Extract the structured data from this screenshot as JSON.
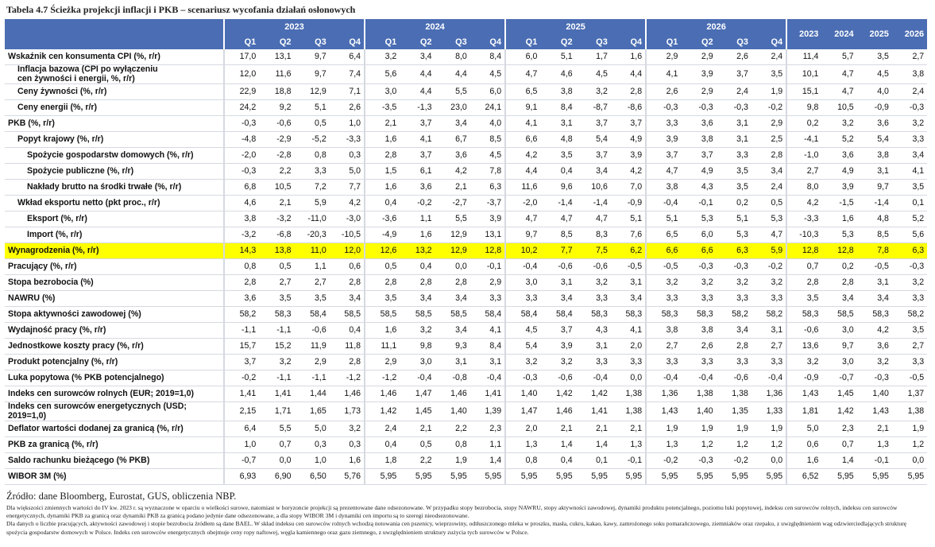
{
  "title": "Tabela 4.7 Ścieżka projekcji inflacji i PKB – scenariusz wycofania działań osłonowych",
  "table": {
    "group_headers": [
      "2023",
      "2024",
      "2025",
      "2026"
    ],
    "quarter_headers": [
      "Q1",
      "Q2",
      "Q3",
      "Q4"
    ],
    "annual_headers": [
      "2023",
      "2024",
      "2025",
      "2026"
    ],
    "rows": [
      {
        "label": "Wskaźnik cen konsumenta CPI (%, r/r)",
        "values": [
          "17,0",
          "13,1",
          "9,7",
          "6,4",
          "3,2",
          "3,4",
          "8,0",
          "8,4",
          "6,0",
          "5,1",
          "1,7",
          "1,6",
          "2,9",
          "2,9",
          "2,6",
          "2,4",
          "11,4",
          "5,7",
          "3,5",
          "2,7"
        ]
      },
      {
        "label": "Inflacja bazowa (CPI po wyłączeniu cen żywności i energii, %, r/r)",
        "values": [
          "12,0",
          "11,6",
          "9,7",
          "7,4",
          "5,6",
          "4,4",
          "4,4",
          "4,5",
          "4,7",
          "4,6",
          "4,5",
          "4,4",
          "4,1",
          "3,9",
          "3,7",
          "3,5",
          "10,1",
          "4,7",
          "4,5",
          "3,8"
        ]
      },
      {
        "label": "Ceny żywności (%, r/r)",
        "values": [
          "22,9",
          "18,8",
          "12,9",
          "7,1",
          "3,0",
          "4,4",
          "5,5",
          "6,0",
          "6,5",
          "3,8",
          "3,2",
          "2,8",
          "2,6",
          "2,9",
          "2,4",
          "1,9",
          "15,1",
          "4,7",
          "4,0",
          "2,4"
        ]
      },
      {
        "label": "Ceny energii (%, r/r)",
        "values": [
          "24,2",
          "9,2",
          "5,1",
          "2,6",
          "-3,5",
          "-1,3",
          "23,0",
          "24,1",
          "9,1",
          "8,4",
          "-8,7",
          "-8,6",
          "-0,3",
          "-0,3",
          "-0,3",
          "-0,2",
          "9,8",
          "10,5",
          "-0,9",
          "-0,3"
        ]
      },
      {
        "label": "PKB (%, r/r)",
        "values": [
          "-0,3",
          "-0,6",
          "0,5",
          "1,0",
          "2,1",
          "3,7",
          "3,4",
          "4,0",
          "4,1",
          "3,1",
          "3,7",
          "3,7",
          "3,3",
          "3,6",
          "3,1",
          "2,9",
          "0,2",
          "3,2",
          "3,6",
          "3,2"
        ]
      },
      {
        "label": "Popyt krajowy (%, r/r)",
        "values": [
          "-4,8",
          "-2,9",
          "-5,2",
          "-3,3",
          "1,6",
          "4,1",
          "6,7",
          "8,5",
          "6,6",
          "4,8",
          "5,4",
          "4,9",
          "3,9",
          "3,8",
          "3,1",
          "2,5",
          "-4,1",
          "5,2",
          "5,4",
          "3,3"
        ]
      },
      {
        "label": "Spożycie gospodarstw domowych (%, r/r)",
        "values": [
          "-2,0",
          "-2,8",
          "0,8",
          "0,3",
          "2,8",
          "3,7",
          "3,6",
          "4,5",
          "4,2",
          "3,5",
          "3,7",
          "3,9",
          "3,7",
          "3,7",
          "3,3",
          "2,8",
          "-1,0",
          "3,6",
          "3,8",
          "3,4"
        ]
      },
      {
        "label": "Spożycie publiczne (%, r/r)",
        "values": [
          "-0,3",
          "2,2",
          "3,3",
          "5,0",
          "1,5",
          "6,1",
          "4,2",
          "7,8",
          "4,4",
          "0,4",
          "3,4",
          "4,2",
          "4,7",
          "4,9",
          "3,5",
          "3,4",
          "2,7",
          "4,9",
          "3,1",
          "4,1"
        ]
      },
      {
        "label": "Nakłady brutto na środki trwałe (%, r/r)",
        "values": [
          "6,8",
          "10,5",
          "7,2",
          "7,7",
          "1,6",
          "3,6",
          "2,1",
          "6,3",
          "11,6",
          "9,6",
          "10,6",
          "7,0",
          "3,8",
          "4,3",
          "3,5",
          "2,4",
          "8,0",
          "3,9",
          "9,7",
          "3,5"
        ]
      },
      {
        "label": "Wkład eksportu netto (pkt proc., r/r)",
        "values": [
          "4,6",
          "2,1",
          "5,9",
          "4,2",
          "0,4",
          "-0,2",
          "-2,7",
          "-3,7",
          "-2,0",
          "-1,4",
          "-1,4",
          "-0,9",
          "-0,4",
          "-0,1",
          "0,2",
          "0,5",
          "4,2",
          "-1,5",
          "-1,4",
          "0,1"
        ]
      },
      {
        "label": "Eksport (%, r/r)",
        "values": [
          "3,8",
          "-3,2",
          "-11,0",
          "-3,0",
          "-3,6",
          "1,1",
          "5,5",
          "3,9",
          "4,7",
          "4,7",
          "4,7",
          "5,1",
          "5,1",
          "5,3",
          "5,1",
          "5,3",
          "-3,3",
          "1,6",
          "4,8",
          "5,2"
        ]
      },
      {
        "label": "Import (%, r/r)",
        "values": [
          "-3,2",
          "-6,8",
          "-20,3",
          "-10,5",
          "-4,9",
          "1,6",
          "12,9",
          "13,1",
          "9,7",
          "8,5",
          "8,3",
          "7,6",
          "6,5",
          "6,0",
          "5,3",
          "4,7",
          "-10,3",
          "5,3",
          "8,5",
          "5,6"
        ]
      },
      {
        "label": "Wynagrodzenia (%, r/r)",
        "values": [
          "14,3",
          "13,8",
          "11,0",
          "12,0",
          "12,6",
          "13,2",
          "12,9",
          "12,8",
          "10,2",
          "7,7",
          "7,5",
          "6,2",
          "6,6",
          "6,6",
          "6,3",
          "5,9",
          "12,8",
          "12,8",
          "7,8",
          "6,3"
        ]
      },
      {
        "label": "Pracujący (%, r/r)",
        "values": [
          "0,8",
          "0,5",
          "1,1",
          "0,6",
          "0,5",
          "0,4",
          "0,0",
          "-0,1",
          "-0,4",
          "-0,6",
          "-0,6",
          "-0,5",
          "-0,5",
          "-0,3",
          "-0,3",
          "-0,2",
          "0,7",
          "0,2",
          "-0,5",
          "-0,3"
        ]
      },
      {
        "label": "Stopa bezrobocia (%)",
        "values": [
          "2,8",
          "2,7",
          "2,7",
          "2,8",
          "2,8",
          "2,8",
          "2,8",
          "2,9",
          "3,0",
          "3,1",
          "3,2",
          "3,1",
          "3,2",
          "3,2",
          "3,2",
          "3,2",
          "2,8",
          "2,8",
          "3,1",
          "3,2"
        ]
      },
      {
        "label": "NAWRU (%)",
        "values": [
          "3,6",
          "3,5",
          "3,5",
          "3,4",
          "3,5",
          "3,4",
          "3,4",
          "3,3",
          "3,3",
          "3,4",
          "3,3",
          "3,4",
          "3,3",
          "3,3",
          "3,3",
          "3,3",
          "3,5",
          "3,4",
          "3,4",
          "3,3"
        ]
      },
      {
        "label": "Stopa aktywności zawodowej (%)",
        "values": [
          "58,2",
          "58,3",
          "58,4",
          "58,5",
          "58,5",
          "58,5",
          "58,5",
          "58,4",
          "58,4",
          "58,4",
          "58,3",
          "58,3",
          "58,3",
          "58,3",
          "58,2",
          "58,2",
          "58,3",
          "58,5",
          "58,3",
          "58,2"
        ]
      },
      {
        "label": "Wydajność pracy (%, r/r)",
        "values": [
          "-1,1",
          "-1,1",
          "-0,6",
          "0,4",
          "1,6",
          "3,2",
          "3,4",
          "4,1",
          "4,5",
          "3,7",
          "4,3",
          "4,1",
          "3,8",
          "3,8",
          "3,4",
          "3,1",
          "-0,6",
          "3,0",
          "4,2",
          "3,5"
        ]
      },
      {
        "label": "Jednostkowe koszty pracy (%, r/r)",
        "values": [
          "15,7",
          "15,2",
          "11,9",
          "11,8",
          "11,1",
          "9,8",
          "9,3",
          "8,4",
          "5,4",
          "3,9",
          "3,1",
          "2,0",
          "2,7",
          "2,6",
          "2,8",
          "2,7",
          "13,6",
          "9,7",
          "3,6",
          "2,7"
        ]
      },
      {
        "label": "Produkt potencjalny (%, r/r)",
        "values": [
          "3,7",
          "3,2",
          "2,9",
          "2,8",
          "2,9",
          "3,0",
          "3,1",
          "3,1",
          "3,2",
          "3,2",
          "3,3",
          "3,3",
          "3,3",
          "3,3",
          "3,3",
          "3,3",
          "3,2",
          "3,0",
          "3,2",
          "3,3"
        ]
      },
      {
        "label": "Luka popytowa (% PKB potencjalnego)",
        "values": [
          "-0,2",
          "-1,1",
          "-1,1",
          "-1,2",
          "-1,2",
          "-0,4",
          "-0,8",
          "-0,4",
          "-0,3",
          "-0,6",
          "-0,4",
          "0,0",
          "-0,4",
          "-0,4",
          "-0,6",
          "-0,4",
          "-0,9",
          "-0,7",
          "-0,3",
          "-0,5"
        ]
      },
      {
        "label": "Indeks cen surowców rolnych (EUR; 2019=1,0)",
        "values": [
          "1,41",
          "1,41",
          "1,44",
          "1,46",
          "1,46",
          "1,47",
          "1,46",
          "1,41",
          "1,40",
          "1,42",
          "1,42",
          "1,38",
          "1,36",
          "1,38",
          "1,38",
          "1,36",
          "1,43",
          "1,45",
          "1,40",
          "1,37"
        ]
      },
      {
        "label": "Indeks cen surowców energetycznych (USD; 2019=1,0)",
        "values": [
          "2,15",
          "1,71",
          "1,65",
          "1,73",
          "1,42",
          "1,45",
          "1,40",
          "1,39",
          "1,47",
          "1,46",
          "1,41",
          "1,38",
          "1,43",
          "1,40",
          "1,35",
          "1,33",
          "1,81",
          "1,42",
          "1,43",
          "1,38"
        ]
      },
      {
        "label": "Deflator wartości dodanej za granicą (%, r/r)",
        "values": [
          "6,4",
          "5,5",
          "5,0",
          "3,2",
          "2,4",
          "2,1",
          "2,2",
          "2,3",
          "2,0",
          "2,1",
          "2,1",
          "2,1",
          "1,9",
          "1,9",
          "1,9",
          "1,9",
          "5,0",
          "2,3",
          "2,1",
          "1,9"
        ]
      },
      {
        "label": "PKB za granicą (%, r/r)",
        "values": [
          "1,0",
          "0,7",
          "0,3",
          "0,3",
          "0,4",
          "0,5",
          "0,8",
          "1,1",
          "1,3",
          "1,4",
          "1,4",
          "1,3",
          "1,3",
          "1,2",
          "1,2",
          "1,2",
          "0,6",
          "0,7",
          "1,3",
          "1,2"
        ]
      },
      {
        "label": "Saldo rachunku bieżącego (% PKB)",
        "values": [
          "-0,7",
          "0,0",
          "1,0",
          "1,6",
          "1,8",
          "2,2",
          "1,9",
          "1,4",
          "0,8",
          "0,4",
          "0,1",
          "-0,1",
          "-0,2",
          "-0,3",
          "-0,2",
          "0,0",
          "1,6",
          "1,4",
          "-0,1",
          "0,0"
        ]
      },
      {
        "label": "WIBOR 3M (%)",
        "values": [
          "6,93",
          "6,90",
          "6,50",
          "5,76",
          "5,95",
          "5,95",
          "5,95",
          "5,95",
          "5,95",
          "5,95",
          "5,95",
          "5,95",
          "5,95",
          "5,95",
          "5,95",
          "5,95",
          "6,52",
          "5,95",
          "5,95",
          "5,95"
        ]
      }
    ]
  },
  "footer": {
    "source": "Źródło: dane Bloomberg, Eurostat, GUS, obliczenia NBP.",
    "notes": [
      "Dla większości zmiennych wartości do IV kw. 2023 r. są wyznaczone w oparciu o wielkości surowe, natomiast w horyzoncie projekcji są prezentowane dane odsezonowane. W przypadku stopy bezrobocia, stopy NAWRU, stopy aktywności zawodowej, dynamiki produktu potencjalnego, poziomu luki popytowej, indeksu cen surowców rolnych, indeksu cen surowców energetycznych, dynamiki PKB za granicą oraz dynamiki PKB za granicą podano jedynie dane odsezonowane, a dla stopy WIBOR 3M i dynamiki cen importu są to szeregi nieodsezonowane.",
      "Dla danych o liczbie pracujących, aktywności zawodowej i stopie bezrobocia źródłem są dane BAEL. W skład indeksu cen surowców rolnych wchodzą notowania cen pszenicy, wieprzowiny, odtłuszczonego mleka w proszku, masła, cukru, kakao, kawy, zamrożonego soku pomarańczowego, ziemniaków oraz rzepaku, z uwzględnieniem wag odzwierciedlających strukturę spożycia gospodarstw domowych w Polsce. Indeks cen surowców energetycznych obejmuje ceny ropy naftowej, węgla kamiennego oraz gazu ziemnego, z uwzględnieniem struktury zużycia tych surowców w Polsce."
    ]
  }
}
